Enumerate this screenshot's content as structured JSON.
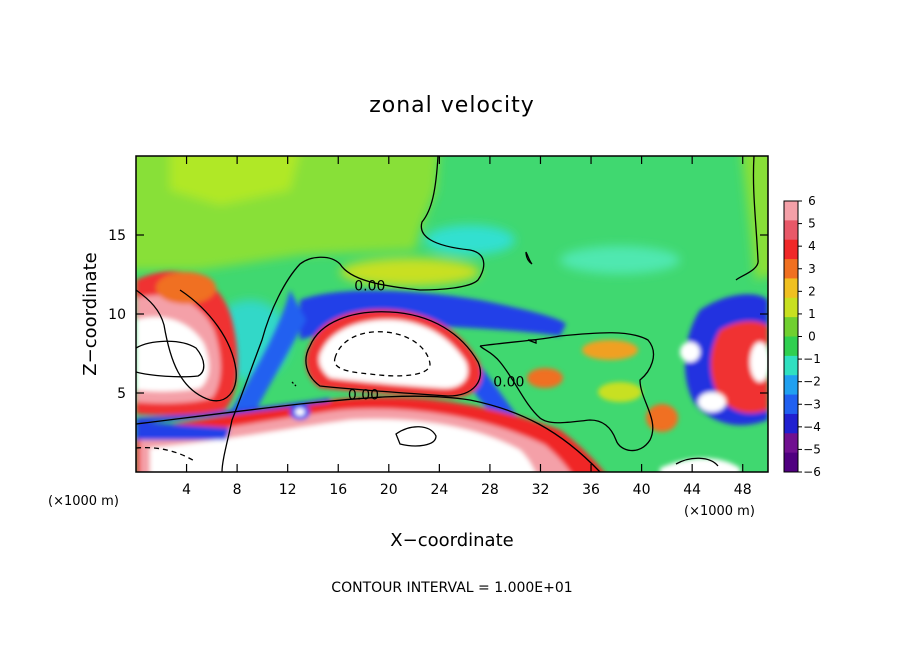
{
  "chart_data": {
    "type": "heatmap",
    "title": "zonal velocity",
    "xlabel": "X−coordinate",
    "ylabel": "Z−coordinate",
    "x_unit_left": "(×1000 m)",
    "x_unit_right": "(×1000 m)",
    "xlim": [
      0,
      50
    ],
    "ylim": [
      0,
      20
    ],
    "x_ticks": [
      4,
      8,
      12,
      16,
      20,
      24,
      28,
      32,
      36,
      40,
      44,
      48
    ],
    "y_ticks": [
      5,
      10,
      15
    ],
    "colorbar": {
      "min": -6,
      "max": 6,
      "ticks": [
        "6",
        "5",
        "4",
        "3",
        "2",
        "1",
        "0",
        "−1",
        "−2",
        "−3",
        "−4",
        "−5",
        "−6"
      ],
      "colors": [
        "#f4a0a8",
        "#e85868",
        "#f02828",
        "#f07020",
        "#f0c020",
        "#c8e020",
        "#70d030",
        "#30d050",
        "#30e0c0",
        "#20a0f0",
        "#2060f0",
        "#2020d0",
        "#701090",
        "#500080"
      ]
    },
    "contour_labels": [
      {
        "text": "0.00",
        "x": 18.5,
        "y": 11.5
      },
      {
        "text": "0.00",
        "x": 18.0,
        "y": 4.6
      },
      {
        "text": "0.00",
        "x": 29.5,
        "y": 5.4
      }
    ],
    "contour_interval_text": "CONTOUR INTERVAL = 1.000E+01",
    "field_summary": [
      {
        "region": "upper domain",
        "value": 0.5
      },
      {
        "region": "band near z=10-11, x=12-34",
        "value": -4
      },
      {
        "region": "core x=15-26, z=6-10",
        "value": 8
      },
      {
        "region": "lower layer z=0-3, x=8-34",
        "value": 7
      },
      {
        "region": "left lobe x=0-7, z=4-12",
        "value": 6
      },
      {
        "region": "right cells x=42-50, z=3-10",
        "value": 5
      }
    ]
  }
}
